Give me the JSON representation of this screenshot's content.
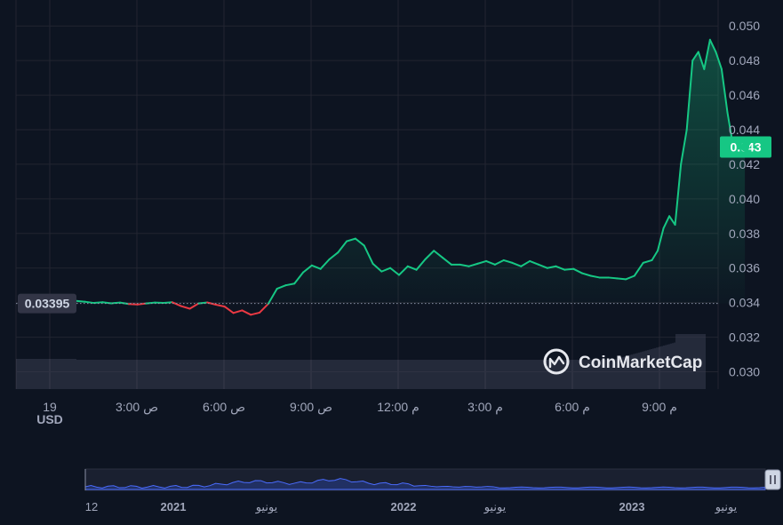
{
  "chart_data": {
    "type": "line",
    "ylim": [
      0.029,
      0.0515
    ],
    "y_ticks": [
      "0.030",
      "0.032",
      "0.034",
      "0.036",
      "0.038",
      "0.040",
      "0.042",
      "0.044",
      "0.046",
      "0.048",
      "0.050"
    ],
    "x_ticks": [
      {
        "time": "19",
        "suffix": "",
        "sub": "USD"
      },
      {
        "time": "3:00",
        "suffix": "ص",
        "sub": ""
      },
      {
        "time": "6:00",
        "suffix": "ص",
        "sub": ""
      },
      {
        "time": "9:00",
        "suffix": "ص",
        "sub": ""
      },
      {
        "time": "12:00",
        "suffix": "م",
        "sub": ""
      },
      {
        "time": "3:00",
        "suffix": "م",
        "sub": ""
      },
      {
        "time": "6:00",
        "suffix": "م",
        "sub": ""
      },
      {
        "time": "9:00",
        "suffix": "م",
        "sub": ""
      }
    ],
    "series": [
      {
        "hours": [
          0,
          0.3,
          0.6,
          0.9,
          1.2,
          1.5,
          1.8,
          2.1,
          2.4,
          2.7,
          3.0,
          3.3,
          3.6,
          3.9,
          4.2,
          4.5,
          4.8,
          5.1,
          5.4,
          5.7,
          6.0,
          6.3,
          6.6,
          6.9,
          7.2,
          7.5,
          7.8,
          8.1,
          8.4,
          8.7,
          9.0,
          9.3,
          9.6,
          9.9,
          10.2,
          10.5,
          10.8,
          11.1,
          11.4,
          11.7,
          12.0,
          12.3,
          12.6,
          12.9,
          13.2,
          13.5,
          13.8,
          14.1,
          14.4,
          14.7,
          15.0,
          15.3,
          15.6,
          15.9,
          16.2,
          16.5,
          16.8,
          17.1,
          17.4,
          17.7,
          18.0,
          18.3,
          18.6,
          18.9,
          19.2,
          19.5,
          19.8,
          20.0,
          20.2,
          20.4,
          20.6,
          20.8,
          21.0,
          21.2,
          21.4,
          21.6,
          21.8,
          22.0,
          22.2,
          22.4,
          22.6,
          22.8,
          23.0
        ],
        "values": [
          0.0341,
          0.03405,
          0.03398,
          0.03402,
          0.03396,
          0.034,
          0.03392,
          0.03389,
          0.03395,
          0.034,
          0.03398,
          0.03402,
          0.0338,
          0.03365,
          0.03395,
          0.03401,
          0.03388,
          0.03377,
          0.0334,
          0.03355,
          0.0333,
          0.03342,
          0.03393,
          0.0348,
          0.035,
          0.0351,
          0.03575,
          0.03615,
          0.03595,
          0.0365,
          0.0369,
          0.03755,
          0.0377,
          0.0373,
          0.03625,
          0.0358,
          0.036,
          0.0356,
          0.0361,
          0.0359,
          0.0365,
          0.037,
          0.0366,
          0.0362,
          0.0362,
          0.0361,
          0.03625,
          0.0364,
          0.0362,
          0.03645,
          0.0363,
          0.0361,
          0.0364,
          0.0362,
          0.036,
          0.0361,
          0.0359,
          0.03595,
          0.0357,
          0.03555,
          0.03545,
          0.03545,
          0.0354,
          0.03535,
          0.03555,
          0.0363,
          0.03645,
          0.037,
          0.0383,
          0.039,
          0.0385,
          0.042,
          0.044,
          0.048,
          0.0485,
          0.0475,
          0.0492,
          0.0485,
          0.0475,
          0.045,
          0.043,
          0.0428,
          0.043
        ]
      }
    ],
    "reference_line": 0.03395,
    "reference_label": "0.03395",
    "current_label": "0.043",
    "colors": {
      "up": "#16c784",
      "down": "#ea3943",
      "grid": "#222531",
      "volume": "#3a3f52",
      "navigator": "#3861fb"
    }
  },
  "navigator": {
    "labels": [
      {
        "text": "12",
        "bold": false
      },
      {
        "text": "2021",
        "bold": true
      },
      {
        "text": "يونيو",
        "bold": false
      },
      {
        "text": "2022",
        "bold": true
      },
      {
        "text": "يونيو",
        "bold": false
      },
      {
        "text": "2023",
        "bold": true
      },
      {
        "text": "يونيو",
        "bold": false
      }
    ],
    "handle_icon": "pause-bars-icon"
  },
  "brand": {
    "name": "CoinMarketCap",
    "logo_icon": "coinmarketcap-logo-icon"
  }
}
